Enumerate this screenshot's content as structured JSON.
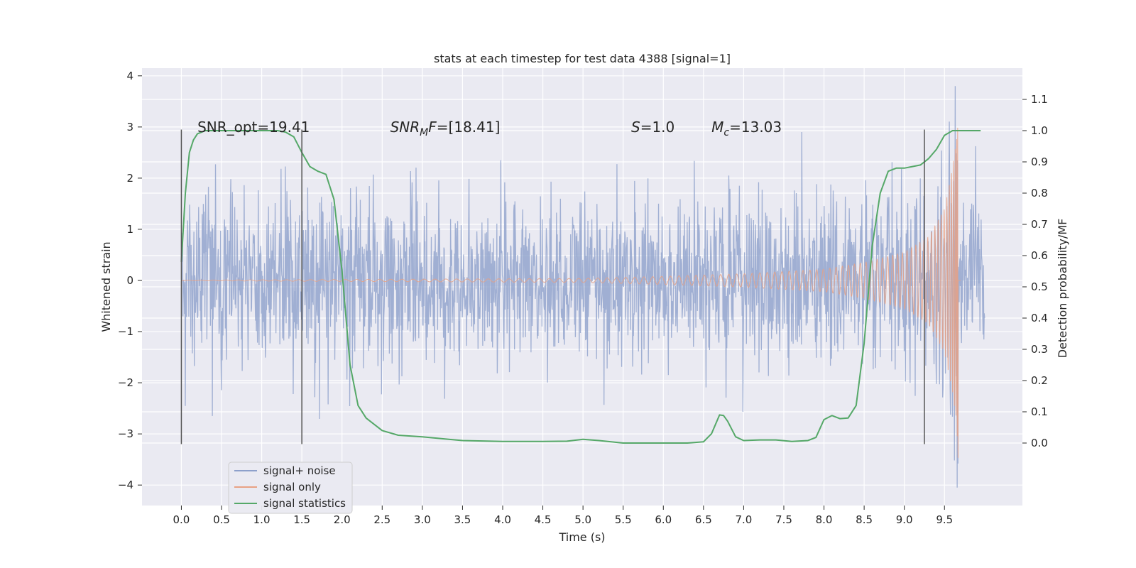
{
  "chart_data": {
    "type": "line",
    "title": "stats at each timestep for test data 4388 [signal=1]",
    "xlabel": "Time (s)",
    "ylabel_left": "Whitened strain",
    "ylabel_right": "Detection probability/MF",
    "xlim": [
      -0.49,
      10.47
    ],
    "ylim_left": [
      -4.4,
      4.15
    ],
    "ylim_right": [
      -0.2,
      1.2
    ],
    "x_ticks": [
      0.0,
      0.5,
      1.0,
      1.5,
      2.0,
      2.5,
      3.0,
      3.5,
      4.0,
      4.5,
      5.0,
      5.5,
      6.0,
      6.5,
      7.0,
      7.5,
      8.0,
      8.5,
      9.0,
      9.5
    ],
    "x_tick_labels": [
      "0.0",
      "0.5",
      "1.0",
      "1.5",
      "2.0",
      "2.5",
      "3.0",
      "3.5",
      "4.0",
      "4.5",
      "5.0",
      "5.5",
      "6.0",
      "6.5",
      "7.0",
      "7.5",
      "8.0",
      "8.5",
      "9.0",
      "9.5"
    ],
    "y_ticks_left": [
      -4,
      -3,
      -2,
      -1,
      0,
      1,
      2,
      3,
      4
    ],
    "y_tick_labels_left": [
      "−4",
      "−3",
      "−2",
      "−1",
      "0",
      "1",
      "2",
      "3",
      "4"
    ],
    "y_ticks_right": [
      0.0,
      0.1,
      0.2,
      0.3,
      0.4,
      0.5,
      0.6,
      0.7,
      0.8,
      0.9,
      1.0,
      1.1
    ],
    "y_tick_labels_right": [
      "0.0",
      "0.1",
      "0.2",
      "0.3",
      "0.4",
      "0.5",
      "0.6",
      "0.7",
      "0.8",
      "0.9",
      "1.0",
      "1.1"
    ],
    "grid": true,
    "legend_position": "lower-left",
    "legend": [
      {
        "label": "signal+ noise",
        "color": "#8da0cb"
      },
      {
        "label": "signal only",
        "color": "#e8a184"
      },
      {
        "label": "signal statistics",
        "color": "#55a868"
      }
    ],
    "annotations": [
      {
        "prefix": "SNR_opt=19.41",
        "x": 0.2,
        "y": 3.0
      },
      {
        "prefix": "SNR",
        "sub": "M",
        "suffix": "F=[18.41]",
        "x": 2.6,
        "y": 3.0
      },
      {
        "prefix": "S",
        "suffix": "=1.0",
        "x": 5.6,
        "y": 3.0
      },
      {
        "prefix": "M",
        "sub": "c",
        "suffix": "=13.03",
        "x": 6.6,
        "y": 3.0
      }
    ],
    "vertical_markers": {
      "x": [
        0.0,
        1.5,
        9.25
      ],
      "y_range": [
        -3.2,
        2.95
      ],
      "color": "#555555"
    },
    "series": [
      {
        "name": "signal+ noise",
        "axis": "left",
        "color": "#8da0cb",
        "x_range": [
          0.0,
          10.0
        ],
        "sample_count": 2048,
        "envelope_abs": 2.1,
        "min": -4.05,
        "max": 3.8
      },
      {
        "name": "signal only",
        "axis": "left",
        "color": "#e8a184",
        "x_start": 0.0,
        "merger_time": 9.67,
        "x_end": 9.7,
        "amplitude_points": [
          [
            0.0,
            0.005
          ],
          [
            5.0,
            0.04
          ],
          [
            6.0,
            0.08
          ],
          [
            7.0,
            0.13
          ],
          [
            8.0,
            0.22
          ],
          [
            8.5,
            0.35
          ],
          [
            9.0,
            0.55
          ],
          [
            9.3,
            0.85
          ],
          [
            9.5,
            1.4
          ],
          [
            9.6,
            2.2
          ],
          [
            9.65,
            2.75
          ],
          [
            9.67,
            3.5
          ]
        ]
      },
      {
        "name": "signal statistics",
        "axis": "right",
        "color": "#55a868",
        "x": [
          0.0,
          0.05,
          0.1,
          0.15,
          0.2,
          0.3,
          0.5,
          0.8,
          1.0,
          1.2,
          1.3,
          1.4,
          1.5,
          1.6,
          1.7,
          1.8,
          1.9,
          2.0,
          2.05,
          2.1,
          2.2,
          2.3,
          2.5,
          2.7,
          3.0,
          3.2,
          3.5,
          4.0,
          4.5,
          4.8,
          5.0,
          5.2,
          5.5,
          6.0,
          6.3,
          6.5,
          6.6,
          6.7,
          6.75,
          6.8,
          6.9,
          7.0,
          7.2,
          7.4,
          7.6,
          7.8,
          7.9,
          8.0,
          8.1,
          8.2,
          8.3,
          8.4,
          8.5,
          8.6,
          8.7,
          8.8,
          8.9,
          9.0,
          9.1,
          9.2,
          9.3,
          9.4,
          9.5,
          9.6,
          9.7,
          9.8,
          9.9,
          9.95
        ],
        "y": [
          0.58,
          0.8,
          0.93,
          0.97,
          0.99,
          1.0,
          1.0,
          1.0,
          1.0,
          1.0,
          0.995,
          0.98,
          0.93,
          0.885,
          0.87,
          0.86,
          0.78,
          0.55,
          0.4,
          0.25,
          0.12,
          0.08,
          0.04,
          0.025,
          0.02,
          0.015,
          0.008,
          0.005,
          0.005,
          0.006,
          0.012,
          0.008,
          0.0,
          0.0,
          0.0,
          0.004,
          0.03,
          0.09,
          0.088,
          0.07,
          0.02,
          0.008,
          0.01,
          0.01,
          0.005,
          0.008,
          0.018,
          0.075,
          0.088,
          0.078,
          0.08,
          0.12,
          0.32,
          0.63,
          0.8,
          0.87,
          0.88,
          0.88,
          0.885,
          0.89,
          0.91,
          0.94,
          0.985,
          1.0,
          1.0,
          1.0,
          1.0,
          1.0
        ]
      }
    ]
  }
}
